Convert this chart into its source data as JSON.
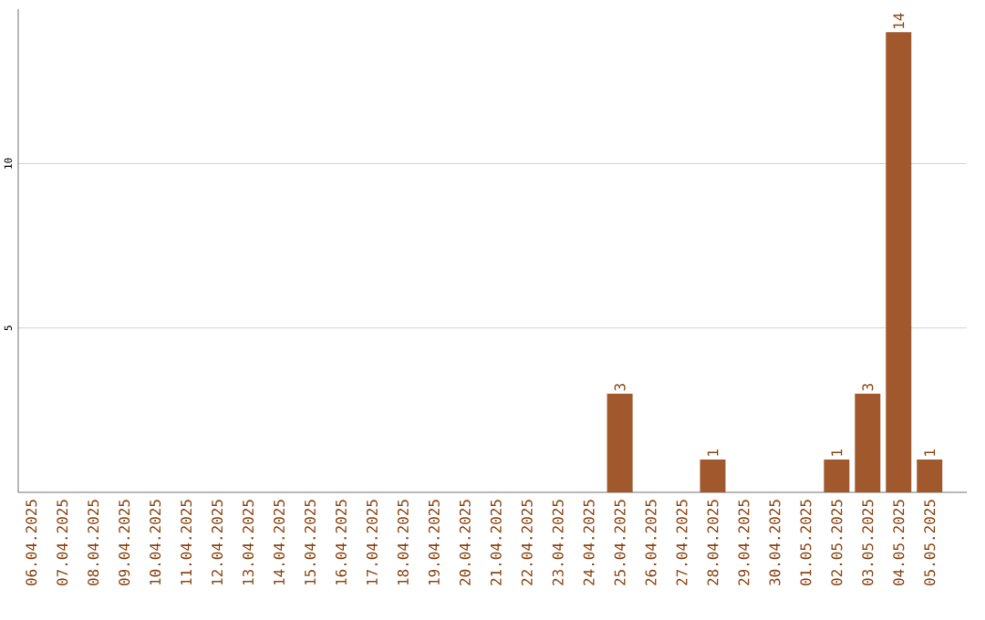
{
  "chart_data": {
    "type": "bar",
    "categories": [
      "06.04.2025",
      "07.04.2025",
      "08.04.2025",
      "09.04.2025",
      "10.04.2025",
      "11.04.2025",
      "12.04.2025",
      "13.04.2025",
      "14.04.2025",
      "15.04.2025",
      "16.04.2025",
      "17.04.2025",
      "18.04.2025",
      "19.04.2025",
      "20.04.2025",
      "21.04.2025",
      "22.04.2025",
      "23.04.2025",
      "24.04.2025",
      "25.04.2025",
      "26.04.2025",
      "27.04.2025",
      "28.04.2025",
      "29.04.2025",
      "30.04.2025",
      "01.05.2025",
      "02.05.2025",
      "03.05.2025",
      "04.05.2025",
      "05.05.2025"
    ],
    "values": [
      0,
      0,
      0,
      0,
      0,
      0,
      0,
      0,
      0,
      0,
      0,
      0,
      0,
      0,
      0,
      0,
      0,
      0,
      0,
      3,
      0,
      0,
      1,
      0,
      0,
      0,
      1,
      3,
      14,
      1
    ],
    "value_labels": [
      null,
      null,
      null,
      null,
      null,
      null,
      null,
      null,
      null,
      null,
      null,
      null,
      null,
      null,
      null,
      null,
      null,
      null,
      null,
      "3",
      null,
      null,
      "1",
      null,
      null,
      null,
      "1",
      "3",
      "14",
      "1"
    ],
    "color": "#a0582c",
    "ylim": [
      0,
      14.7
    ],
    "yticks": [
      5,
      10
    ],
    "grid": "y"
  }
}
